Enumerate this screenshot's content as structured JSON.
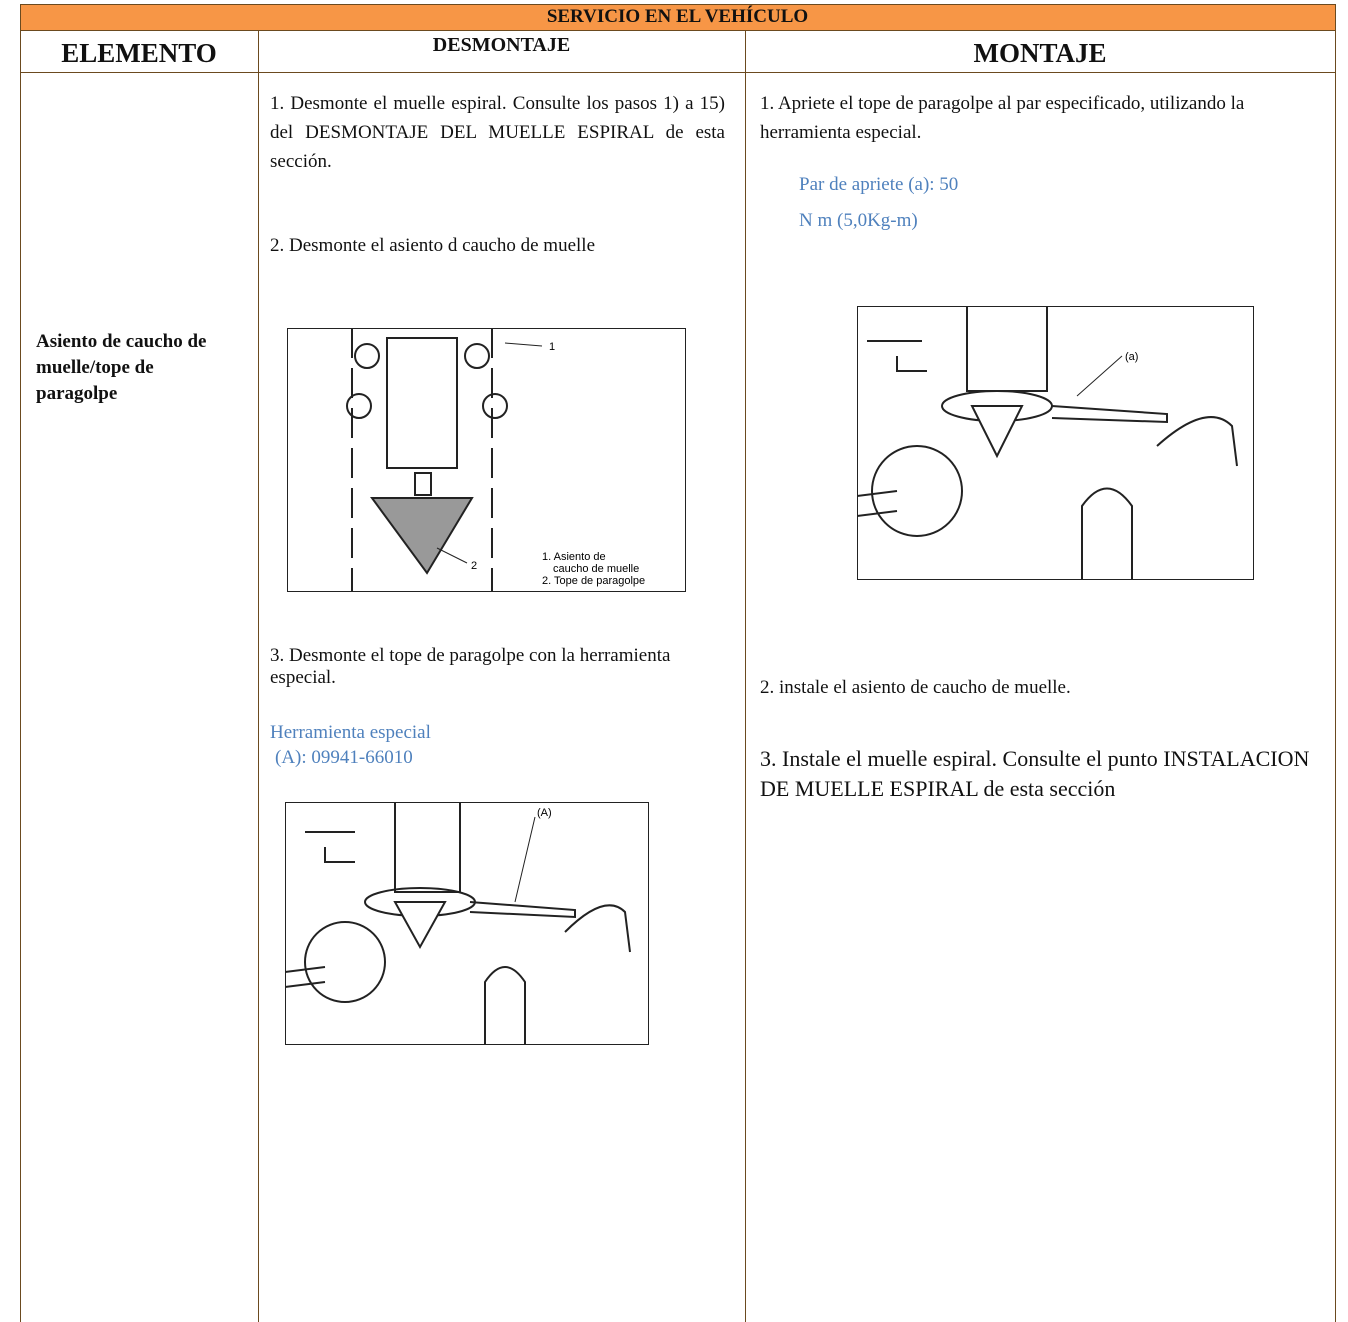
{
  "table": {
    "title": "SERVICIO EN EL VEHÍCULO",
    "headers": [
      "ELEMENTO",
      "DESMONTAJE",
      "MONTAJE"
    ],
    "element": "Asiento de caucho de muelle/tope de paragolpe",
    "desmontaje": {
      "steps": [
        "1. Desmonte el muelle espiral. Consulte los pasos 1) a 15) del DESMONTAJE DEL MUELLE ESPIRAL de esta sección.",
        "2. Desmonte el asiento d caucho de muelle",
        "3. Desmonte el tope de paragolpe con la herramienta especial."
      ],
      "figure_1_labels": [
        "1",
        "2",
        "1. Asiento de",
        "caucho de muelle",
        "2. Tope de paragolpe"
      ],
      "tool": [
        "Herramienta especial",
        "(A): 09941-66010"
      ],
      "figure_2_labels": [
        "(A)"
      ]
    },
    "montaje": {
      "steps": [
        "1. Apriete el tope de paragolpe al par especificado, utilizando la herramienta especial.",
        "2. instale el asiento de caucho de muelle.",
        "3. Instale el muelle espiral. Consulte el punto INSTALACION DE MUELLE ESPIRAL de esta sección"
      ],
      "torque": [
        "Par de apriete (a): 50",
        "N m (5,0Kg-m)"
      ],
      "figure_labels": [
        "(a)"
      ]
    }
  }
}
